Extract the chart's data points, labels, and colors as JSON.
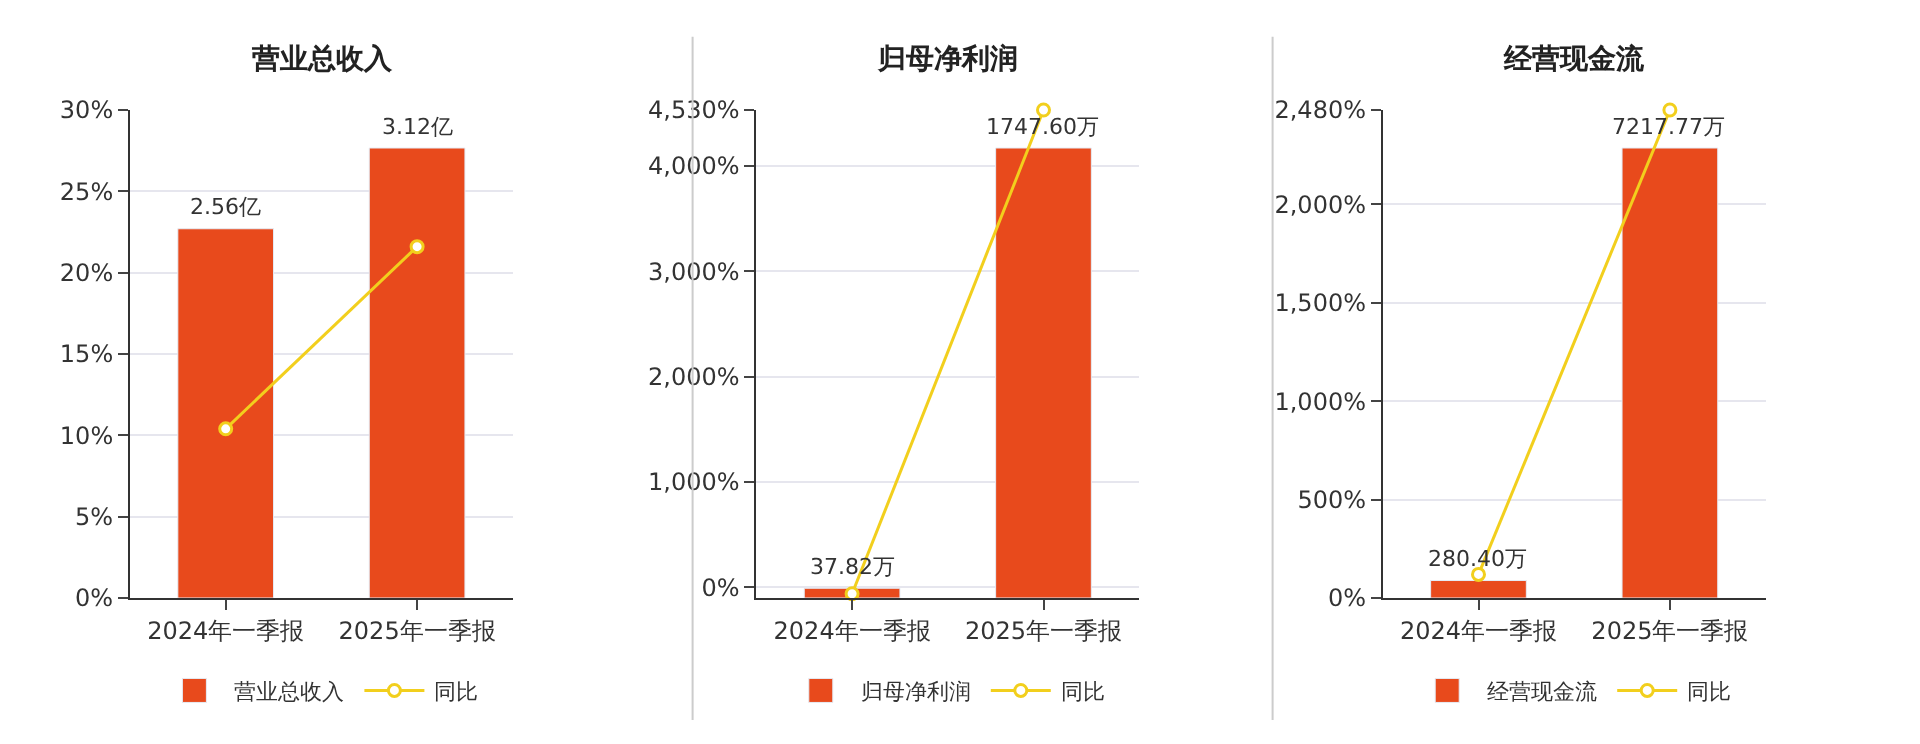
{
  "chart_data": [
    {
      "type": "bar",
      "title": "营业总收入",
      "categories": [
        "2024年一季报",
        "2025年一季报"
      ],
      "series": [
        {
          "name": "营业总收入",
          "axis": "y2",
          "color": "#e84a1c",
          "values": [
            2.56,
            3.12
          ],
          "value_labels": [
            "2.56亿",
            "3.12亿"
          ]
        },
        {
          "name": "同比",
          "type": "line",
          "color": "#f2cf1d",
          "values": [
            10.4,
            21.6
          ],
          "marker": "circle"
        }
      ],
      "ylim": [
        0,
        30
      ],
      "yticks": [
        {
          "value": 0,
          "label": "0%"
        },
        {
          "value": 5,
          "label": "5%"
        },
        {
          "value": 10,
          "label": "10%"
        },
        {
          "value": 15,
          "label": "15%"
        },
        {
          "value": 20,
          "label": "20%"
        },
        {
          "value": 25,
          "label": "25%"
        },
        {
          "value": 30,
          "label": "30%"
        }
      ],
      "grid": "y",
      "legend": "bottom"
    },
    {
      "type": "bar",
      "title": "归母净利润",
      "categories": [
        "2024年一季报",
        "2025年一季报"
      ],
      "series": [
        {
          "name": "归母净利润",
          "axis": "y2",
          "color": "#e84a1c",
          "values": [
            37.82,
            1747.6
          ],
          "value_labels": [
            "37.82万",
            "1747.60万"
          ]
        },
        {
          "name": "同比",
          "type": "line",
          "color": "#f2cf1d",
          "values": [
            -60,
            4530
          ],
          "marker": "circle"
        }
      ],
      "ylim": [
        -100,
        4530
      ],
      "yticks": [
        {
          "value": 0,
          "label": "0%"
        },
        {
          "value": 1000,
          "label": "1,000%"
        },
        {
          "value": 2000,
          "label": "2,000%"
        },
        {
          "value": 3000,
          "label": "3,000%"
        },
        {
          "value": 4000,
          "label": "4,000%"
        },
        {
          "value": 4530,
          "label": "4,530%"
        }
      ],
      "grid": "y",
      "legend": "bottom"
    },
    {
      "type": "bar",
      "title": "经营现金流",
      "categories": [
        "2024年一季报",
        "2025年一季报"
      ],
      "series": [
        {
          "name": "经营现金流",
          "axis": "y2",
          "color": "#e84a1c",
          "values": [
            280.4,
            7217.77
          ],
          "value_labels": [
            "280.40万",
            "7217.77万"
          ]
        },
        {
          "name": "同比",
          "type": "line",
          "color": "#f2cf1d",
          "values": [
            120,
            2480
          ],
          "marker": "circle"
        }
      ],
      "ylim": [
        0,
        2480
      ],
      "yticks": [
        {
          "value": 0,
          "label": "0%"
        },
        {
          "value": 500,
          "label": "500%"
        },
        {
          "value": 1000,
          "label": "1,000%"
        },
        {
          "value": 1500,
          "label": "1,500%"
        },
        {
          "value": 2000,
          "label": "2,000%"
        },
        {
          "value": 2480,
          "label": "2,480%"
        }
      ],
      "grid": "y",
      "legend": "bottom"
    }
  ]
}
